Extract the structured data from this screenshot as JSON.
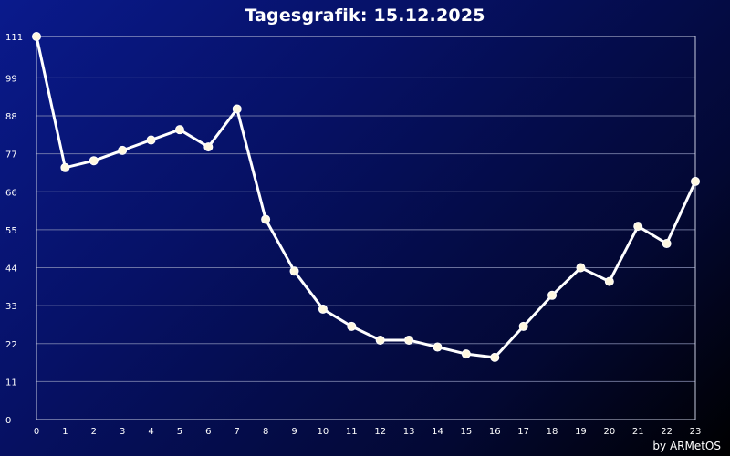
{
  "credit": "by ARMetOS",
  "chart_data": {
    "type": "line",
    "title": "Tagesgrafik: 15.12.2025",
    "xlabel": "",
    "ylabel": "",
    "x": [
      0,
      1,
      2,
      3,
      4,
      5,
      6,
      7,
      8,
      9,
      10,
      11,
      12,
      13,
      14,
      15,
      16,
      17,
      18,
      19,
      20,
      21,
      22,
      23
    ],
    "y": [
      111,
      73,
      75,
      78,
      81,
      84,
      79,
      90,
      58,
      43,
      32,
      27,
      23,
      23,
      21,
      19,
      18,
      27,
      36,
      44,
      40,
      56,
      51,
      69
    ],
    "xlim": [
      0,
      23
    ],
    "ylim": [
      0,
      111
    ],
    "yticks": [
      0,
      11,
      22,
      33,
      44,
      55,
      66,
      77,
      88,
      99,
      111
    ],
    "xticks": [
      0,
      1,
      2,
      3,
      4,
      5,
      6,
      7,
      8,
      9,
      10,
      11,
      12,
      13,
      14,
      15,
      16,
      17,
      18,
      19,
      20,
      21,
      22,
      23
    ],
    "grid": true,
    "line_color": "#ffffff",
    "marker_color": "#fff8e0"
  }
}
